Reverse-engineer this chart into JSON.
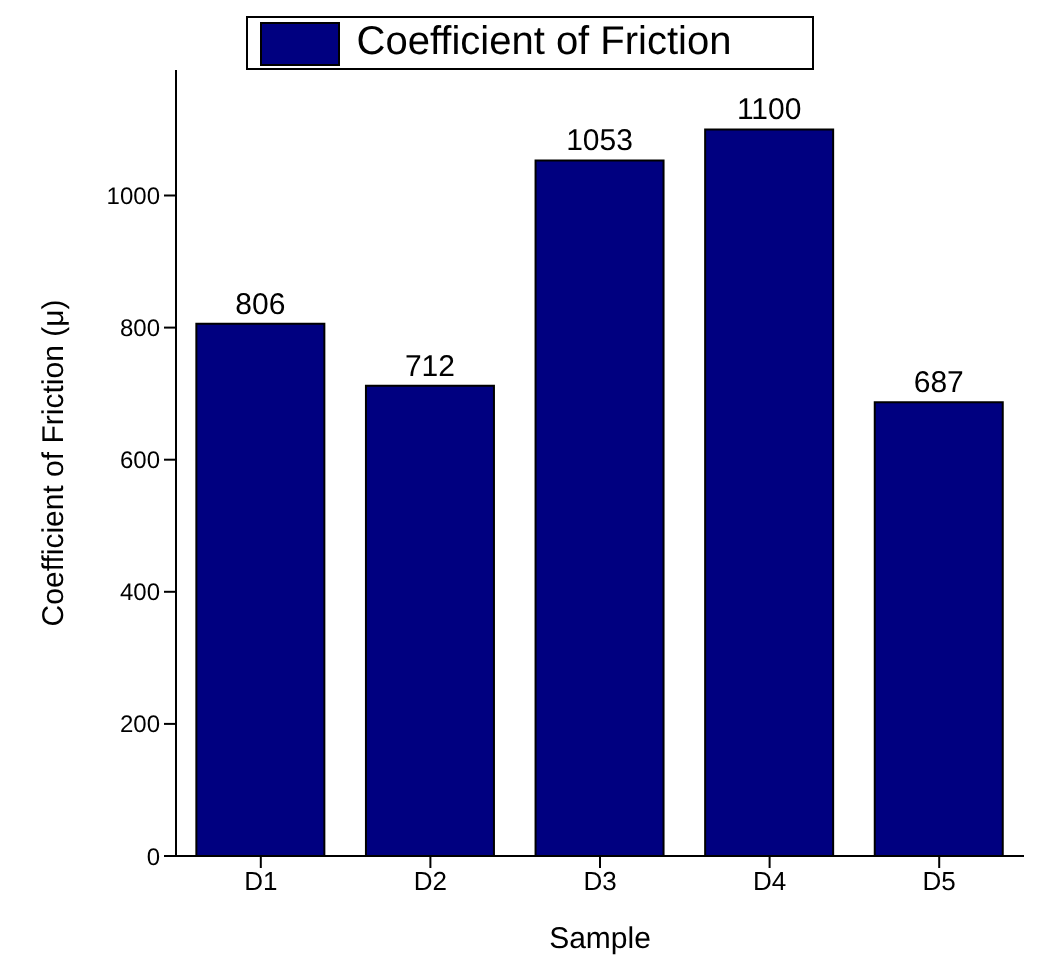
{
  "chart_data": {
    "type": "bar",
    "xlabel": "Sample",
    "ylabel": "Coefficient of Friction (μ)",
    "categories": [
      "D1",
      "D2",
      "D3",
      "D4",
      "D5"
    ],
    "series": [
      {
        "name": "Coefficient of Friction",
        "color": "#000080",
        "values": [
          806,
          712,
          1053,
          1100,
          687
        ]
      }
    ],
    "ylim": [
      0,
      1190
    ],
    "yticks": [
      0,
      200,
      400,
      600,
      800,
      1000
    ],
    "data_labels": true,
    "legend": "top",
    "grid": false
  }
}
